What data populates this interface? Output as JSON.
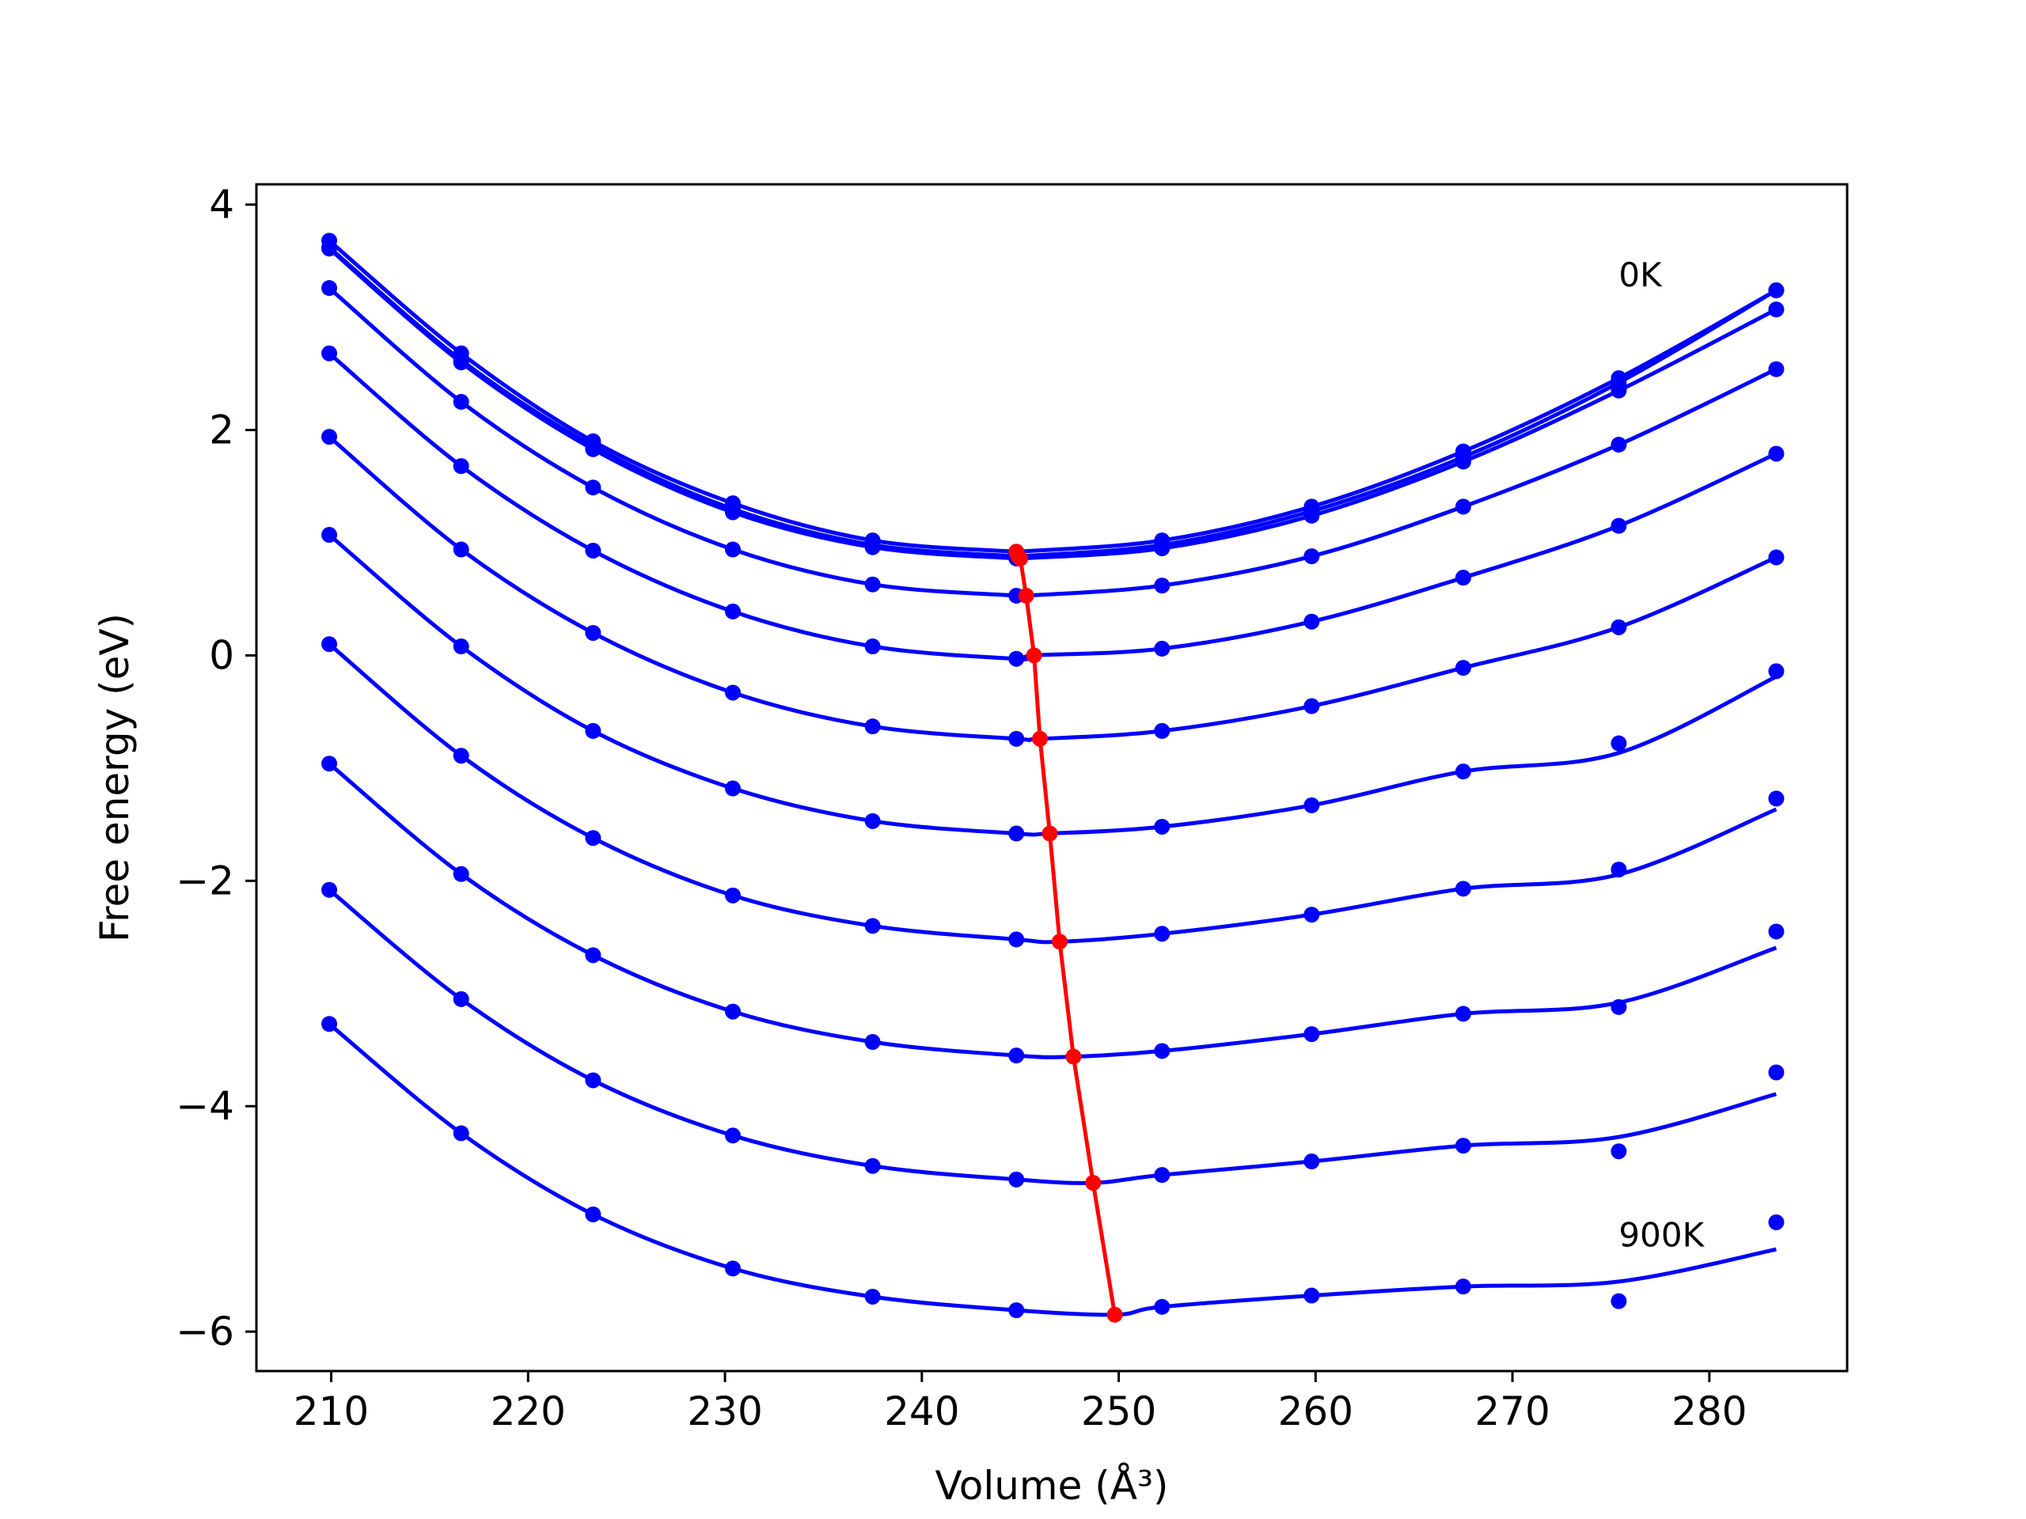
{
  "chart_data": {
    "type": "scatter",
    "title": "",
    "xlabel": "Volume (Å³)",
    "ylabel": "Free energy (eV)",
    "xlim": [
      206.2,
      287
    ],
    "ylim": [
      -6.35,
      4.18
    ],
    "xticks": [
      210,
      220,
      230,
      240,
      250,
      260,
      270,
      280
    ],
    "yticks": [
      -6,
      -4,
      -2,
      0,
      2,
      4
    ],
    "ytick_labels": [
      "−6",
      "−4",
      "−2",
      "0",
      "2",
      "4"
    ],
    "grid": false,
    "legend": "none",
    "annotations": [
      {
        "text": "0K",
        "x": 275.4,
        "y": 3.38
      },
      {
        "text": "900K",
        "x": 275.4,
        "y": -5.14
      }
    ],
    "x": [
      209.9,
      216.6,
      223.3,
      230.4,
      237.5,
      244.8,
      252.2,
      259.8,
      267.5,
      275.4,
      283.4
    ],
    "curve_color": "#0000ff",
    "point_color": "#0000ff",
    "min_line_color": "#ff0000",
    "series": [
      {
        "values": [
          3.68,
          2.68,
          1.9,
          1.35,
          1.02,
          0.92,
          1.02,
          1.32,
          1.81,
          2.46,
          3.24
        ],
        "fit_min": {
          "x": 244.8,
          "y": 0.92
        }
      },
      {
        "values": [
          3.62,
          2.62,
          1.86,
          1.3,
          0.98,
          0.88,
          0.98,
          1.28,
          1.76,
          2.42,
          3.24
        ],
        "fit_min": {
          "x": 244.9,
          "y": 0.88
        }
      },
      {
        "values": [
          3.61,
          2.6,
          1.83,
          1.27,
          0.96,
          0.86,
          0.95,
          1.24,
          1.72,
          2.35,
          3.07
        ],
        "fit_min": {
          "x": 245.0,
          "y": 0.86
        }
      },
      {
        "values": [
          3.26,
          2.25,
          1.49,
          0.94,
          0.63,
          0.53,
          0.62,
          0.88,
          1.32,
          1.87,
          2.54
        ],
        "fit_min": {
          "x": 245.3,
          "y": 0.53
        }
      },
      {
        "values": [
          2.68,
          1.68,
          0.93,
          0.39,
          0.08,
          -0.03,
          0.06,
          0.3,
          0.69,
          1.15,
          1.79
        ],
        "fit_min": {
          "x": 245.7,
          "y": 0.0
        }
      },
      {
        "values": [
          1.94,
          0.94,
          0.2,
          -0.33,
          -0.63,
          -0.74,
          -0.67,
          -0.45,
          -0.11,
          0.25,
          0.87
        ],
        "fit_min": {
          "x": 246.0,
          "y": -0.74
        }
      },
      {
        "values": [
          1.07,
          0.08,
          -0.67,
          -1.18,
          -1.47,
          -1.58,
          -1.52,
          -1.33,
          -1.03,
          -0.78,
          -0.14
        ],
        "fit_min": {
          "x": 246.5,
          "y": -1.58
        }
      },
      {
        "values": [
          0.1,
          -0.89,
          -1.62,
          -2.13,
          -2.4,
          -2.52,
          -2.47,
          -2.3,
          -2.07,
          -1.9,
          -1.27
        ],
        "fit_min": {
          "x": 247.0,
          "y": -2.54
        }
      },
      {
        "values": [
          -0.96,
          -1.94,
          -2.66,
          -3.16,
          -3.43,
          -3.55,
          -3.51,
          -3.36,
          -3.18,
          -3.12,
          -2.45
        ],
        "fit_min": {
          "x": 247.7,
          "y": -3.56
        }
      },
      {
        "values": [
          -2.08,
          -3.05,
          -3.77,
          -4.26,
          -4.53,
          -4.65,
          -4.61,
          -4.49,
          -4.35,
          -4.4,
          -3.7
        ],
        "fit_min": {
          "x": 248.7,
          "y": -4.68
        }
      },
      {
        "values": [
          -3.27,
          -4.24,
          -4.96,
          -5.44,
          -5.69,
          -5.81,
          -5.78,
          -5.68,
          -5.6,
          -5.73,
          -5.03
        ],
        "fit_min": {
          "x": 249.8,
          "y": -5.85
        }
      }
    ]
  }
}
